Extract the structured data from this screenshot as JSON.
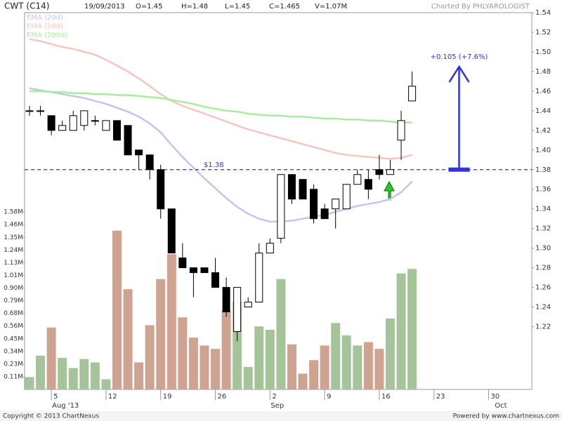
{
  "chart_data": {
    "type": "candlestick",
    "title": "CWT (C14)",
    "header": {
      "date": "19/09/2013",
      "fields": [
        "O=1.45",
        "H=1.48",
        "L=1.45",
        "C=1.465",
        "V=1.07M"
      ],
      "credit": "Charted By PHLYAROLOGIST"
    },
    "footer": {
      "left": "Copyright © 2013 ChartNexus",
      "right": "Powered by www.chartnexus.com"
    },
    "categories": [
      null,
      null,
      null,
      null,
      null,
      null,
      null,
      null,
      null,
      null,
      null,
      null,
      null,
      null,
      null,
      null,
      null,
      null,
      null,
      null,
      null,
      null,
      null,
      null,
      null,
      null,
      null,
      null,
      null,
      null,
      null,
      null,
      null,
      null,
      null,
      null
    ],
    "open": [
      1.44,
      1.44,
      1.435,
      1.42,
      1.42,
      1.425,
      1.43,
      1.42,
      1.43,
      1.425,
      1.4,
      1.395,
      1.38,
      1.34,
      1.29,
      1.28,
      1.28,
      1.275,
      1.26,
      1.215,
      1.24,
      1.245,
      1.295,
      1.31,
      1.375,
      1.37,
      1.36,
      1.34,
      1.34,
      1.34,
      1.365,
      1.37,
      1.38,
      1.375,
      1.41,
      1.45
    ],
    "high": [
      1.445,
      1.445,
      1.435,
      1.43,
      1.44,
      1.44,
      1.435,
      1.43,
      1.43,
      1.425,
      1.4,
      1.395,
      1.385,
      1.34,
      1.305,
      1.28,
      1.28,
      1.29,
      1.27,
      1.26,
      1.25,
      1.305,
      1.31,
      1.375,
      1.375,
      1.37,
      1.365,
      1.345,
      1.35,
      1.365,
      1.38,
      1.38,
      1.395,
      1.39,
      1.44,
      1.48
    ],
    "low": [
      1.435,
      1.435,
      1.415,
      1.42,
      1.42,
      1.42,
      1.425,
      1.42,
      1.41,
      1.395,
      1.38,
      1.37,
      1.33,
      1.295,
      1.28,
      1.25,
      1.275,
      1.26,
      1.23,
      1.205,
      1.24,
      1.245,
      1.295,
      1.305,
      1.345,
      1.35,
      1.325,
      1.33,
      1.32,
      1.34,
      1.365,
      1.35,
      1.37,
      1.375,
      1.39,
      1.45
    ],
    "close": [
      1.44,
      1.44,
      1.42,
      1.425,
      1.435,
      1.44,
      1.43,
      1.43,
      1.41,
      1.395,
      1.395,
      1.38,
      1.34,
      1.295,
      1.28,
      1.275,
      1.275,
      1.26,
      1.235,
      1.26,
      1.245,
      1.295,
      1.305,
      1.375,
      1.35,
      1.35,
      1.33,
      1.33,
      1.35,
      1.365,
      1.375,
      1.36,
      1.375,
      1.38,
      1.43,
      1.465
    ],
    "up_color": "#ffffff",
    "down_color": "#000000",
    "series": [
      {
        "name": "EMA (20d)",
        "color": "#c4c4f2",
        "values": [
          1.463,
          1.461,
          1.459,
          1.457,
          1.455,
          1.453,
          1.45,
          1.447,
          1.443,
          1.439,
          1.434,
          1.427,
          1.418,
          1.405,
          1.393,
          1.382,
          1.371,
          1.361,
          1.351,
          1.342,
          1.335,
          1.33,
          1.327,
          1.327,
          1.328,
          1.33,
          1.332,
          1.334,
          1.337,
          1.34,
          1.343,
          1.345,
          1.347,
          1.35,
          1.357,
          1.368
        ]
      },
      {
        "name": "EMA (50d)",
        "color": "#f7c6c0",
        "values": [
          1.513,
          1.511,
          1.508,
          1.505,
          1.503,
          1.5,
          1.497,
          1.492,
          1.486,
          1.48,
          1.473,
          1.465,
          1.457,
          1.45,
          1.445,
          1.441,
          1.437,
          1.433,
          1.429,
          1.425,
          1.421,
          1.418,
          1.415,
          1.412,
          1.409,
          1.406,
          1.403,
          1.4,
          1.397,
          1.395,
          1.394,
          1.393,
          1.392,
          1.391,
          1.392,
          1.395
        ]
      },
      {
        "name": "EMA (200d)",
        "color": "#a6ee9e",
        "values": [
          1.46,
          1.46,
          1.459,
          1.459,
          1.458,
          1.458,
          1.457,
          1.457,
          1.456,
          1.456,
          1.455,
          1.454,
          1.453,
          1.451,
          1.449,
          1.447,
          1.444,
          1.442,
          1.44,
          1.439,
          1.437,
          1.436,
          1.435,
          1.435,
          1.434,
          1.434,
          1.433,
          1.432,
          1.432,
          1.431,
          1.431,
          1.43,
          1.43,
          1.429,
          1.428,
          1.428
        ]
      }
    ],
    "volume": {
      "axis": "y2",
      "up_color": "#a6c49a",
      "down_color": "#cfa392",
      "values": [
        0.11,
        0.3,
        0.55,
        0.28,
        0.19,
        0.27,
        0.24,
        0.09,
        1.41,
        0.89,
        0.24,
        0.57,
        0.98,
        1.2,
        0.64,
        0.46,
        0.39,
        0.36,
        0.7,
        0.78,
        0.2,
        0.56,
        0.53,
        0.98,
        0.4,
        0.14,
        0.26,
        0.39,
        0.59,
        0.48,
        0.39,
        0.42,
        0.36,
        0.63,
        1.03,
        1.07
      ]
    },
    "xlim": [
      -0.45,
      45.95
    ],
    "xticks": [
      {
        "value": 2,
        "label": "5"
      },
      {
        "value": 7,
        "label": "12"
      },
      {
        "value": 12,
        "label": "19"
      },
      {
        "value": 17,
        "label": "26"
      },
      {
        "value": 22,
        "label": "2"
      },
      {
        "value": 27,
        "label": "9"
      },
      {
        "value": 32,
        "label": "16"
      },
      {
        "value": 37,
        "label": "23"
      },
      {
        "value": 42,
        "label": "30"
      }
    ],
    "xtick_groups": [
      {
        "value": 2,
        "label": "Aug '13"
      },
      {
        "value": 22,
        "label": "Sep"
      },
      {
        "value": 42.5,
        "label": "Oct"
      }
    ],
    "ylim": [
      1.156,
      1.54
    ],
    "yticks": [
      1.54,
      1.52,
      {
        "value": 1.5,
        "label": "1.50"
      },
      1.48,
      1.46,
      1.44,
      1.42,
      {
        "value": 1.4,
        "label": "1.40"
      },
      1.38,
      1.36,
      1.34,
      1.32,
      {
        "value": 1.3,
        "label": "1.30"
      },
      1.28,
      1.26,
      1.24,
      1.22
    ],
    "y2lim": [
      0,
      3.345
    ],
    "y2ticks": [
      {
        "value": 0.1125,
        "label": "0.11M"
      },
      {
        "value": 0.225,
        "label": "0.23M"
      },
      {
        "value": 0.3375,
        "label": "0.34M"
      },
      {
        "value": 0.45,
        "label": "0.45M"
      },
      {
        "value": 0.5625,
        "label": "0.56M"
      },
      {
        "value": 0.675,
        "label": "0.68M"
      },
      {
        "value": 0.7875,
        "label": "0.79M"
      },
      {
        "value": 0.9,
        "label": "0.90M"
      },
      {
        "value": 1.0125,
        "label": "1.01M"
      },
      {
        "value": 1.125,
        "label": "1.13M"
      },
      {
        "value": 1.2375,
        "label": "1.24M"
      },
      {
        "value": 1.35,
        "label": "1.35M"
      },
      {
        "value": 1.4625,
        "label": "1.46M"
      },
      {
        "value": 1.575,
        "label": "1.58M"
      }
    ],
    "annotations": {
      "hline": {
        "value": 1.38,
        "label": "$1.38",
        "color": "#3333dd"
      },
      "gain": {
        "from": 1.38,
        "change": 0.105,
        "x": 39.3,
        "label": "+0.105 (+7.6%)",
        "color": "#3333dd"
      }
    }
  }
}
